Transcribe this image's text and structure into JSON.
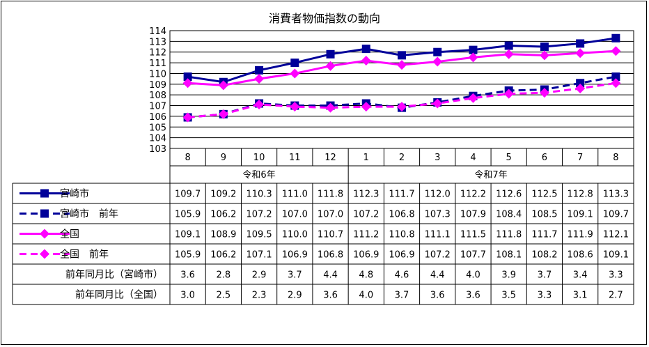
{
  "chart_data": {
    "type": "line",
    "title": "消費者物価指数の動向",
    "categories": [
      "8",
      "9",
      "10",
      "11",
      "12",
      "1",
      "2",
      "3",
      "4",
      "5",
      "6",
      "7",
      "8"
    ],
    "year_groups": [
      {
        "label": "令和6年",
        "count": 5
      },
      {
        "label": "令和7年",
        "count": 8
      }
    ],
    "ylim": [
      103,
      114
    ],
    "yticks": [
      103,
      104,
      105,
      106,
      107,
      108,
      109,
      110,
      111,
      112,
      113,
      114
    ],
    "grid": true,
    "series": [
      {
        "name": "宮崎市",
        "color": "#000099",
        "dashed": false,
        "marker": "square",
        "values": [
          109.7,
          109.2,
          110.3,
          111.0,
          111.8,
          112.3,
          111.7,
          112.0,
          112.2,
          112.6,
          112.5,
          112.8,
          113.3
        ]
      },
      {
        "name": "宮崎市　前年",
        "color": "#000099",
        "dashed": true,
        "marker": "square",
        "values": [
          105.9,
          106.2,
          107.2,
          107.0,
          107.0,
          107.2,
          106.8,
          107.3,
          107.9,
          108.4,
          108.5,
          109.1,
          109.7
        ]
      },
      {
        "name": "全国",
        "color": "#ff00ff",
        "dashed": false,
        "marker": "diamond",
        "values": [
          109.1,
          108.9,
          109.5,
          110.0,
          110.7,
          111.2,
          110.8,
          111.1,
          111.5,
          111.8,
          111.7,
          111.9,
          112.1
        ]
      },
      {
        "name": "全国　前年",
        "color": "#ff00ff",
        "dashed": true,
        "marker": "diamond",
        "values": [
          105.9,
          106.2,
          107.1,
          106.9,
          106.8,
          106.9,
          106.9,
          107.2,
          107.7,
          108.1,
          108.2,
          108.6,
          109.1
        ]
      }
    ],
    "extra_rows": [
      {
        "name": "前年同月比（宮崎市）",
        "values": [
          "3.6",
          "2.8",
          "2.9",
          "3.7",
          "4.4",
          "4.8",
          "4.6",
          "4.4",
          "4.0",
          "3.9",
          "3.7",
          "3.4",
          "3.3"
        ]
      },
      {
        "name": "前年同月比（全国）",
        "values": [
          "3.0",
          "2.5",
          "2.3",
          "2.9",
          "3.6",
          "4.0",
          "3.7",
          "3.6",
          "3.6",
          "3.5",
          "3.3",
          "3.1",
          "2.7"
        ]
      }
    ]
  }
}
